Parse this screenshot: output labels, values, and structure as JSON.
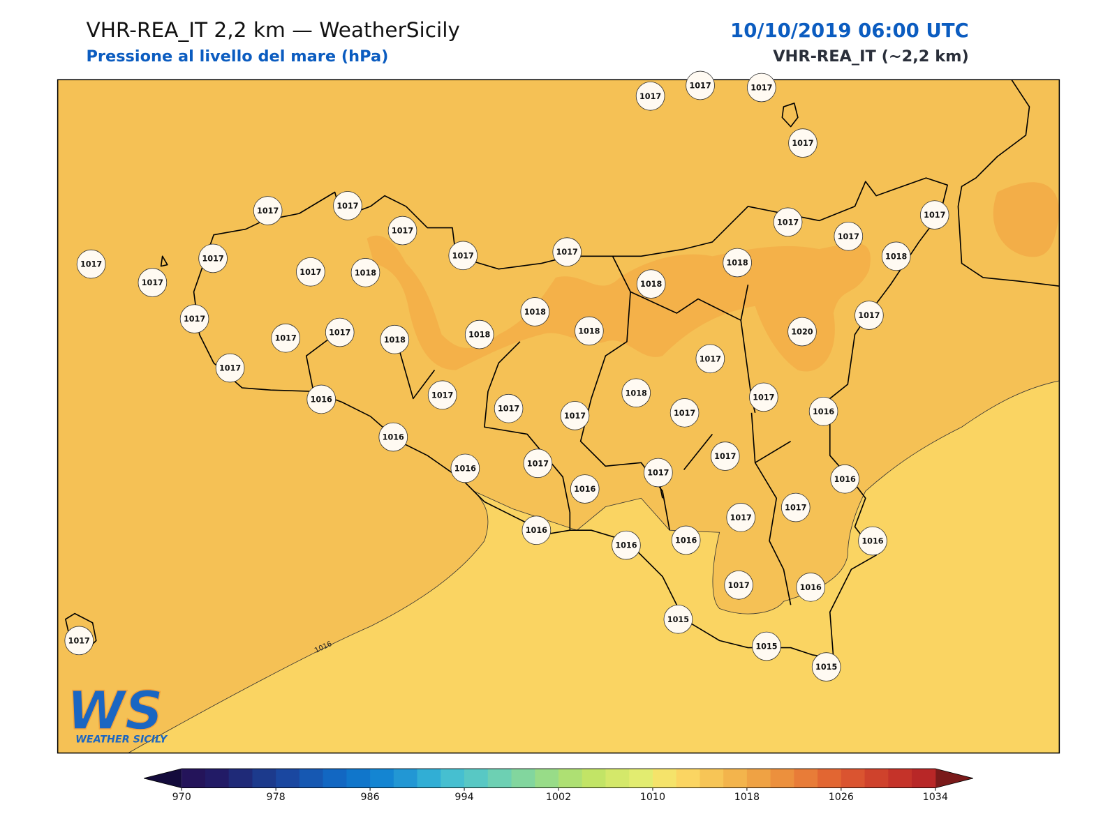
{
  "header": {
    "title": "VHR-REA_IT 2,2 km — WeatherSicily",
    "subtitle": "Pressione al livello del mare (hPa)",
    "datetime": "10/10/2019 06:00 UTC",
    "model": "VHR-REA_IT (~2,2 km)"
  },
  "map": {
    "contour_label": "1016",
    "stations": [
      1017,
      1017,
      1017,
      1017,
      1017,
      1017,
      1017,
      1017,
      1017,
      1017,
      1017,
      1017,
      1017,
      1017,
      1017,
      1018,
      1017,
      1018,
      1018,
      1018,
      1017,
      1018,
      1018,
      1017,
      1017,
      1017,
      1018,
      1018,
      1020,
      1017,
      1017,
      1016,
      1017,
      1018,
      1017,
      1017,
      1017,
      1017,
      1016,
      1016,
      1016,
      1017,
      1017,
      1017,
      1016,
      1016,
      1017,
      1017,
      1016,
      1016,
      1016,
      1016,
      1017,
      1016,
      1015,
      1015,
      1015,
      1017
    ]
  },
  "colorbar": {
    "ticks": [
      970,
      978,
      986,
      994,
      1002,
      1010,
      1018,
      1026,
      1034
    ]
  },
  "logo": {
    "mark": "WS",
    "name": "WEATHER SICILY"
  }
}
